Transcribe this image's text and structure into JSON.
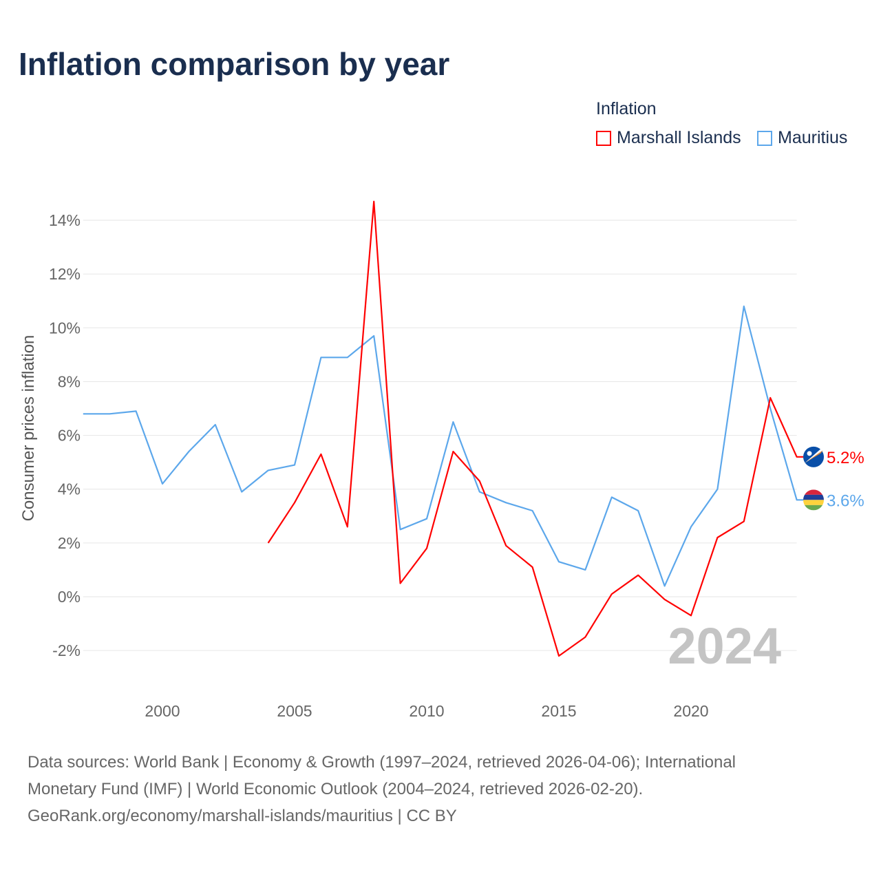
{
  "title": "Inflation comparison by year",
  "legend": {
    "title": "Inflation",
    "items": [
      "Marshall Islands",
      "Mauritius"
    ]
  },
  "year_watermark": "2024",
  "footer": {
    "line1": "Data sources: World Bank | Economy & Growth (1997–2024, retrieved 2026-04-06); International",
    "line2": "Monetary Fund (IMF) | World Economic Outlook (2004–2024, retrieved 2026-02-20).",
    "line3": "GeoRank.org/economy/marshall-islands/mauritius | CC BY"
  },
  "chart_data": {
    "type": "line",
    "title": "Inflation comparison by year",
    "xlabel": "",
    "ylabel": "Consumer prices inflation",
    "xlim": [
      1997,
      2024
    ],
    "ylim": [
      -3,
      15
    ],
    "xticks": [
      2000,
      2005,
      2010,
      2015,
      2020
    ],
    "yticks": [
      -2,
      0,
      2,
      4,
      6,
      8,
      10,
      12,
      14
    ],
    "ytick_labels": [
      "-2%",
      "0%",
      "2%",
      "4%",
      "6%",
      "8%",
      "10%",
      "12%",
      "14%"
    ],
    "grid": true,
    "legend_position": "top-right",
    "series": [
      {
        "name": "Marshall Islands",
        "color": "#ff0000",
        "end_label": "5.2%",
        "x": [
          2004,
          2005,
          2006,
          2007,
          2008,
          2009,
          2010,
          2011,
          2012,
          2013,
          2014,
          2015,
          2016,
          2017,
          2018,
          2019,
          2020,
          2021,
          2022,
          2023,
          2024
        ],
        "values": [
          2.0,
          3.5,
          5.3,
          2.6,
          14.7,
          0.5,
          1.8,
          5.4,
          4.3,
          1.9,
          1.1,
          -2.2,
          -1.5,
          0.1,
          0.8,
          -0.1,
          -0.7,
          2.2,
          2.8,
          7.4,
          5.2
        ]
      },
      {
        "name": "Mauritius",
        "color": "#5ca7eb",
        "end_label": "3.6%",
        "x": [
          1997,
          1998,
          1999,
          2000,
          2001,
          2002,
          2003,
          2004,
          2005,
          2006,
          2007,
          2008,
          2009,
          2010,
          2011,
          2012,
          2013,
          2014,
          2015,
          2016,
          2017,
          2018,
          2019,
          2020,
          2021,
          2022,
          2023,
          2024
        ],
        "values": [
          6.8,
          6.8,
          6.9,
          4.2,
          5.4,
          6.4,
          3.9,
          4.7,
          4.9,
          8.9,
          8.9,
          9.7,
          2.5,
          2.9,
          6.5,
          3.9,
          3.5,
          3.2,
          1.3,
          1.0,
          3.7,
          3.2,
          0.4,
          2.6,
          4.0,
          10.8,
          7.0,
          3.6
        ]
      }
    ]
  }
}
